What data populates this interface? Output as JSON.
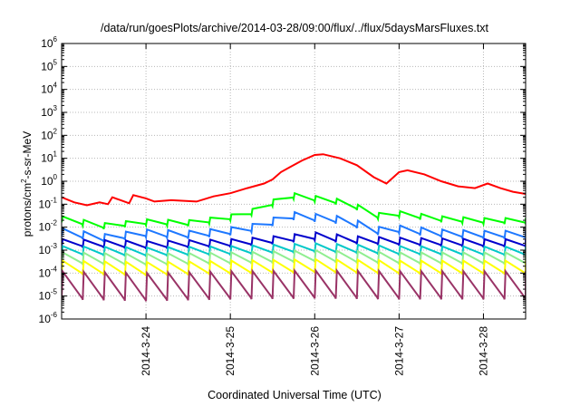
{
  "chart_data": {
    "type": "line",
    "title": "/data/run/goesPlots/archive/2014-03-28/09:00/flux/../flux/5daysMarsFluxes.txt",
    "xlabel": "Coordinated Universal Time (UTC)",
    "ylabel": {
      "base": "protons/cm",
      "sup": "2",
      "rest": "-s-sr-MeV"
    },
    "yscale": "log",
    "ylim_exp": [
      -6,
      6
    ],
    "ytick_exponents": [
      -6,
      -5,
      -4,
      -3,
      -2,
      -1,
      0,
      1,
      2,
      3,
      4,
      5,
      6
    ],
    "xlim_days": [
      0,
      5.5
    ],
    "xlim_dates": [
      "2014-03-23 00:00",
      "2014-03-28 12:00"
    ],
    "xticks": [
      {
        "label": "2014-3-24",
        "day": 1
      },
      {
        "label": "2014-3-25",
        "day": 2
      },
      {
        "label": "2014-3-26",
        "day": 3
      },
      {
        "label": "2014-3-27",
        "day": 4
      },
      {
        "label": "2014-3-28",
        "day": 5
      }
    ],
    "grid": true,
    "series": [
      {
        "color": "#ff0000",
        "sawtooth": false,
        "points": [
          [
            0,
            0.2
          ],
          [
            0.15,
            0.12
          ],
          [
            0.3,
            0.09
          ],
          [
            0.45,
            0.12
          ],
          [
            0.55,
            0.1
          ],
          [
            0.6,
            0.2
          ],
          [
            0.7,
            0.15
          ],
          [
            0.8,
            0.11
          ],
          [
            0.85,
            0.25
          ],
          [
            1.0,
            0.18
          ],
          [
            1.1,
            0.13
          ],
          [
            1.3,
            0.15
          ],
          [
            1.6,
            0.13
          ],
          [
            1.8,
            0.22
          ],
          [
            2.0,
            0.3
          ],
          [
            2.2,
            0.5
          ],
          [
            2.4,
            0.8
          ],
          [
            2.5,
            1.2
          ],
          [
            2.6,
            2.5
          ],
          [
            2.7,
            4.0
          ],
          [
            2.85,
            8.0
          ],
          [
            3.0,
            14.0
          ],
          [
            3.1,
            15.0
          ],
          [
            3.3,
            10.0
          ],
          [
            3.5,
            5.0
          ],
          [
            3.7,
            1.5
          ],
          [
            3.85,
            0.8
          ],
          [
            4.0,
            2.5
          ],
          [
            4.1,
            3.0
          ],
          [
            4.3,
            2.0
          ],
          [
            4.5,
            1.0
          ],
          [
            4.7,
            0.6
          ],
          [
            4.9,
            0.5
          ],
          [
            5.05,
            0.8
          ],
          [
            5.2,
            0.5
          ],
          [
            5.35,
            0.35
          ],
          [
            5.5,
            0.28
          ]
        ]
      },
      {
        "color": "#00ff00",
        "sawtooth": true,
        "lo_factor": 0.55,
        "points": [
          [
            0,
            0.03
          ],
          [
            0.5,
            0.015
          ],
          [
            1.0,
            0.022
          ],
          [
            1.5,
            0.02
          ],
          [
            1.9,
            0.03
          ],
          [
            2.2,
            0.05
          ],
          [
            2.5,
            0.15
          ],
          [
            2.65,
            0.35
          ],
          [
            2.9,
            0.25
          ],
          [
            3.2,
            0.2
          ],
          [
            3.5,
            0.1
          ],
          [
            3.7,
            0.04
          ],
          [
            4.0,
            0.05
          ],
          [
            4.5,
            0.03
          ],
          [
            5.0,
            0.025
          ],
          [
            5.5,
            0.025
          ]
        ]
      },
      {
        "color": "#1e78ff",
        "sawtooth": true,
        "lo_factor": 0.45,
        "points": [
          [
            0,
            0.009
          ],
          [
            0.5,
            0.005
          ],
          [
            1.0,
            0.008
          ],
          [
            1.5,
            0.007
          ],
          [
            1.9,
            0.009
          ],
          [
            2.2,
            0.012
          ],
          [
            2.5,
            0.025
          ],
          [
            2.65,
            0.05
          ],
          [
            2.9,
            0.04
          ],
          [
            3.2,
            0.035
          ],
          [
            3.5,
            0.02
          ],
          [
            3.7,
            0.01
          ],
          [
            4.0,
            0.012
          ],
          [
            4.5,
            0.008
          ],
          [
            5.0,
            0.007
          ],
          [
            5.5,
            0.007
          ]
        ]
      },
      {
        "color": "#0000cc",
        "sawtooth": true,
        "lo_factor": 0.45,
        "points": [
          [
            0,
            0.003
          ],
          [
            1.0,
            0.0025
          ],
          [
            2.0,
            0.003
          ],
          [
            2.5,
            0.004
          ],
          [
            3.0,
            0.006
          ],
          [
            3.5,
            0.004
          ],
          [
            4.0,
            0.0035
          ],
          [
            5.0,
            0.003
          ],
          [
            5.5,
            0.003
          ]
        ]
      },
      {
        "color": "#00c8c8",
        "sawtooth": true,
        "lo_factor": 0.4,
        "points": [
          [
            0,
            0.0015
          ],
          [
            1.0,
            0.0013
          ],
          [
            2.0,
            0.0015
          ],
          [
            3.0,
            0.002
          ],
          [
            4.0,
            0.0015
          ],
          [
            5.5,
            0.0014
          ]
        ]
      },
      {
        "color": "#90ee90",
        "sawtooth": true,
        "lo_factor": 0.3,
        "points": [
          [
            0,
            0.0008
          ],
          [
            1.0,
            0.0007
          ],
          [
            2.0,
            0.0008
          ],
          [
            3.0,
            0.001
          ],
          [
            4.0,
            0.0008
          ],
          [
            5.5,
            0.0008
          ]
        ]
      },
      {
        "color": "#ffff00",
        "sawtooth": true,
        "lo_factor": 0.25,
        "points": [
          [
            0,
            0.00035
          ],
          [
            1.0,
            0.0003
          ],
          [
            2.0,
            0.00035
          ],
          [
            3.0,
            0.0004
          ],
          [
            4.0,
            0.00035
          ],
          [
            5.5,
            0.00035
          ]
        ]
      },
      {
        "color": "#993366",
        "sawtooth": true,
        "lo_factor": 0.06,
        "points": [
          [
            0,
            0.00012
          ],
          [
            1.0,
            0.0001
          ],
          [
            2.0,
            0.00012
          ],
          [
            3.0,
            0.00013
          ],
          [
            4.0,
            0.00012
          ],
          [
            5.5,
            0.00012
          ]
        ]
      }
    ]
  }
}
